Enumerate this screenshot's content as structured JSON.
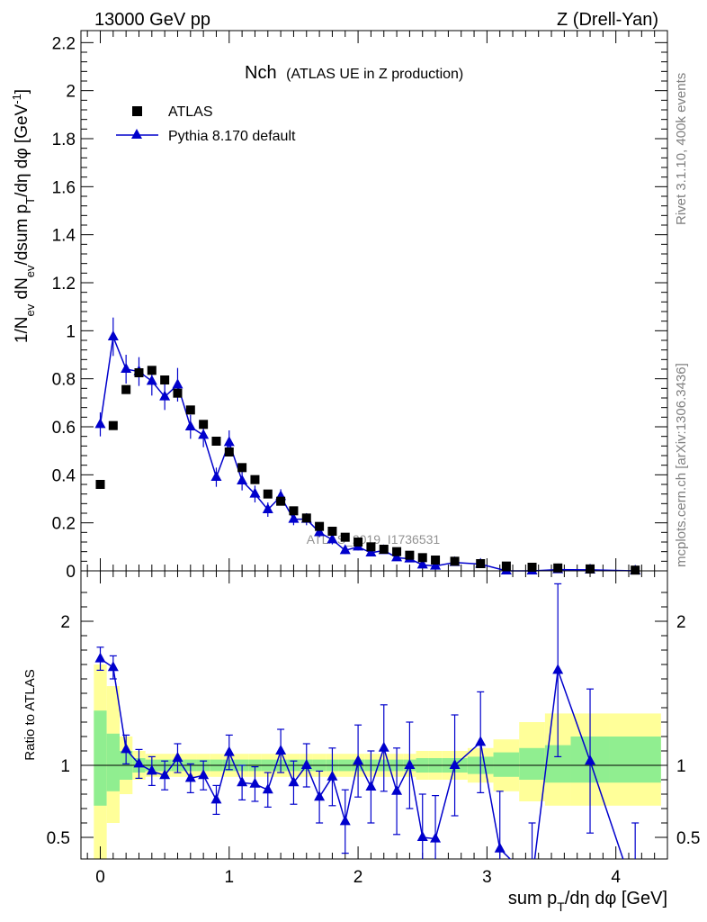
{
  "header": {
    "left": "13000 GeV pp",
    "right": "Z (Drell-Yan)"
  },
  "side_labels": {
    "rivet": "Rivet 3.1.10,  400k events",
    "mcplots": "mcplots.cern.ch [arXiv:1306.3436]"
  },
  "colors": {
    "data": "#000000",
    "mc": "#0000cc",
    "band_inner": "#90ee90",
    "band_outer": "#ffff99"
  },
  "chart_data": [
    {
      "type": "scatter",
      "title": "Nch",
      "subtitle": "(ATLAS UE in Z production)",
      "watermark": "ATLAS_2019_I1736531",
      "ylabel": "1/N_ev dN_ev/dsum p_T/dη dφ [GeV^-1]",
      "xlim": [
        -0.15,
        4.4
      ],
      "ylim": [
        0,
        2.25
      ],
      "yticks": [
        "0",
        "0.2",
        "0.4",
        "0.6",
        "0.8",
        "1",
        "1.2",
        "1.4",
        "1.6",
        "1.8",
        "2",
        "2.2"
      ],
      "legend": [
        "ATLAS",
        "Pythia 8.170 default"
      ],
      "legend_position": "top-left",
      "x": [
        0.0,
        0.1,
        0.2,
        0.3,
        0.4,
        0.5,
        0.6,
        0.7,
        0.8,
        0.9,
        1.0,
        1.1,
        1.2,
        1.3,
        1.4,
        1.5,
        1.6,
        1.7,
        1.8,
        1.9,
        2.0,
        2.1,
        2.2,
        2.3,
        2.4,
        2.5,
        2.6,
        2.75,
        2.95,
        3.15,
        3.35,
        3.55,
        3.8,
        4.15
      ],
      "series": [
        {
          "name": "ATLAS",
          "values": [
            0.36,
            0.605,
            0.755,
            0.825,
            0.835,
            0.795,
            0.74,
            0.67,
            0.61,
            0.54,
            0.495,
            0.43,
            0.38,
            0.32,
            0.29,
            0.25,
            0.22,
            0.185,
            0.165,
            0.14,
            0.12,
            0.1,
            0.09,
            0.08,
            0.065,
            0.055,
            0.045,
            0.04,
            0.03,
            0.02,
            0.015,
            0.012,
            0.008,
            0.003
          ]
        },
        {
          "name": "Pythia 8.170 default",
          "values": [
            0.61,
            0.975,
            0.84,
            0.83,
            0.79,
            0.725,
            0.775,
            0.6,
            0.565,
            0.39,
            0.535,
            0.375,
            0.32,
            0.255,
            0.31,
            0.215,
            0.215,
            0.16,
            0.13,
            0.085,
            0.1,
            0.075,
            0.085,
            0.055,
            0.05,
            0.025,
            0.02,
            0.035,
            0.028,
            0.0,
            0.0,
            0.005,
            0.004,
            0.0
          ],
          "errors": [
            0.05,
            0.08,
            0.06,
            0.06,
            0.06,
            0.055,
            0.07,
            0.05,
            0.05,
            0.04,
            0.05,
            0.04,
            0.035,
            0.03,
            0.03,
            0.025,
            0.025,
            0.02,
            0.02,
            0.015,
            0.015,
            0.012,
            0.012,
            0.01,
            0.01,
            0.008,
            0.008,
            0.008,
            0.006,
            0.004,
            0.004,
            0.003,
            0.003,
            0.002
          ]
        }
      ]
    },
    {
      "type": "line",
      "ylabel": "Ratio to ATLAS",
      "xlabel": "sum p_T/dη dφ [GeV]",
      "xlim": [
        -0.15,
        4.4
      ],
      "ylim": [
        0.35,
        2.35
      ],
      "xticks": [
        "0",
        "1",
        "2",
        "3",
        "4"
      ],
      "yticks": [
        "0.5",
        "1",
        "2"
      ],
      "reference_line": 1.0,
      "band_edges": [
        -0.05,
        0.05,
        0.15,
        0.25,
        0.35,
        0.45,
        0.55,
        0.65,
        0.75,
        0.85,
        0.95,
        1.05,
        1.15,
        1.25,
        1.35,
        1.45,
        1.55,
        1.65,
        1.75,
        1.85,
        1.95,
        2.05,
        2.15,
        2.25,
        2.35,
        2.45,
        2.55,
        2.65,
        2.85,
        3.05,
        3.25,
        3.45,
        3.65,
        3.95,
        4.35
      ],
      "band_inner": [
        [
          0.72,
          1.38
        ],
        [
          0.82,
          1.22
        ],
        [
          0.9,
          1.1
        ],
        [
          0.95,
          1.05
        ],
        [
          0.96,
          1.04
        ],
        [
          0.96,
          1.04
        ],
        [
          0.96,
          1.04
        ],
        [
          0.96,
          1.04
        ],
        [
          0.96,
          1.04
        ],
        [
          0.96,
          1.04
        ],
        [
          0.96,
          1.04
        ],
        [
          0.96,
          1.04
        ],
        [
          0.96,
          1.04
        ],
        [
          0.96,
          1.04
        ],
        [
          0.96,
          1.04
        ],
        [
          0.96,
          1.04
        ],
        [
          0.96,
          1.04
        ],
        [
          0.96,
          1.04
        ],
        [
          0.96,
          1.04
        ],
        [
          0.96,
          1.04
        ],
        [
          0.96,
          1.04
        ],
        [
          0.96,
          1.04
        ],
        [
          0.96,
          1.04
        ],
        [
          0.96,
          1.04
        ],
        [
          0.96,
          1.04
        ],
        [
          0.95,
          1.05
        ],
        [
          0.95,
          1.05
        ],
        [
          0.95,
          1.05
        ],
        [
          0.94,
          1.06
        ],
        [
          0.92,
          1.09
        ],
        [
          0.9,
          1.12
        ],
        [
          0.88,
          1.14
        ],
        [
          0.88,
          1.2
        ],
        [
          0.88,
          1.2
        ]
      ],
      "band_outer": [
        [
          0.3,
          1.7
        ],
        [
          0.6,
          1.55
        ],
        [
          0.8,
          1.2
        ],
        [
          0.9,
          1.1
        ],
        [
          0.92,
          1.08
        ],
        [
          0.92,
          1.08
        ],
        [
          0.92,
          1.08
        ],
        [
          0.92,
          1.08
        ],
        [
          0.92,
          1.08
        ],
        [
          0.92,
          1.08
        ],
        [
          0.92,
          1.08
        ],
        [
          0.92,
          1.08
        ],
        [
          0.92,
          1.08
        ],
        [
          0.92,
          1.08
        ],
        [
          0.92,
          1.08
        ],
        [
          0.92,
          1.08
        ],
        [
          0.92,
          1.08
        ],
        [
          0.92,
          1.08
        ],
        [
          0.92,
          1.08
        ],
        [
          0.92,
          1.08
        ],
        [
          0.92,
          1.08
        ],
        [
          0.92,
          1.08
        ],
        [
          0.92,
          1.08
        ],
        [
          0.92,
          1.08
        ],
        [
          0.92,
          1.08
        ],
        [
          0.9,
          1.1
        ],
        [
          0.9,
          1.1
        ],
        [
          0.9,
          1.1
        ],
        [
          0.88,
          1.12
        ],
        [
          0.82,
          1.18
        ],
        [
          0.75,
          1.3
        ],
        [
          0.72,
          1.36
        ],
        [
          0.72,
          1.36
        ],
        [
          0.72,
          1.36
        ]
      ],
      "series": [
        {
          "name": "Pythia 8.170 default",
          "x": [
            0.0,
            0.1,
            0.2,
            0.3,
            0.4,
            0.5,
            0.6,
            0.7,
            0.8,
            0.9,
            1.0,
            1.1,
            1.2,
            1.3,
            1.4,
            1.5,
            1.6,
            1.7,
            1.8,
            1.9,
            2.0,
            2.1,
            2.2,
            2.3,
            2.4,
            2.5,
            2.6,
            2.75,
            2.95,
            3.1,
            3.35,
            3.55,
            3.8,
            4.15
          ],
          "values": [
            1.74,
            1.68,
            1.11,
            1.01,
            0.96,
            0.93,
            1.05,
            0.91,
            0.93,
            0.76,
            1.09,
            0.88,
            0.87,
            0.83,
            1.1,
            0.88,
            1.0,
            0.78,
            0.92,
            0.61,
            1.03,
            0.85,
            1.12,
            0.82,
            1.0,
            0.5,
            0.49,
            1.0,
            1.16,
            0.42,
            0.2,
            1.66,
            1.03,
            0.1
          ],
          "errors": [
            0.08,
            0.08,
            0.1,
            0.1,
            0.1,
            0.1,
            0.1,
            0.1,
            0.1,
            0.1,
            0.12,
            0.12,
            0.12,
            0.12,
            0.15,
            0.15,
            0.15,
            0.18,
            0.2,
            0.22,
            0.25,
            0.25,
            0.3,
            0.3,
            0.3,
            0.3,
            0.3,
            0.35,
            0.35,
            0.4,
            0.4,
            0.6,
            0.5,
            0.5
          ]
        }
      ]
    }
  ]
}
